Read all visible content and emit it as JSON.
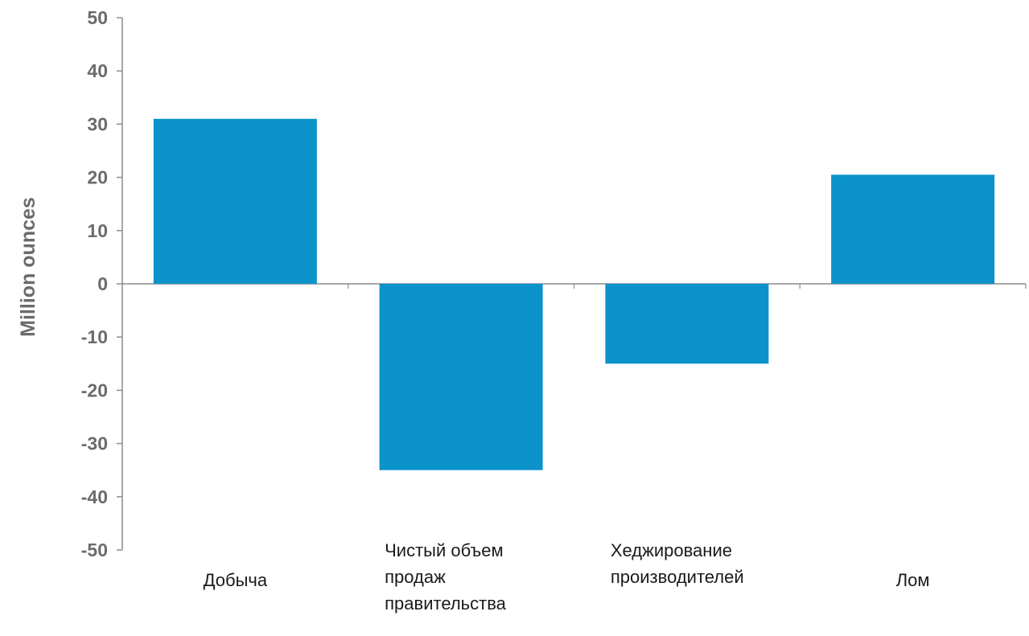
{
  "chart_data": {
    "type": "bar",
    "title": "",
    "xlabel": "",
    "ylabel": "Million ounces",
    "ylim": [
      -50,
      50
    ],
    "yticks": [
      50,
      40,
      30,
      20,
      10,
      0,
      -10,
      -20,
      -30,
      -40,
      -50
    ],
    "grid": false,
    "legend": "none",
    "categories": [
      [
        "Добыча"
      ],
      [
        "Чистый объем",
        "продаж",
        "правительства"
      ],
      [
        "Хеджирование",
        "производителей"
      ],
      [
        "Лом"
      ]
    ],
    "values": [
      31,
      -35,
      -15,
      20.5
    ],
    "colors": {
      "bar": "#0d93cc",
      "axis": "#8c8c8c",
      "tick_text": "#6b6b6b",
      "category_text": "#1a1a1a"
    }
  }
}
